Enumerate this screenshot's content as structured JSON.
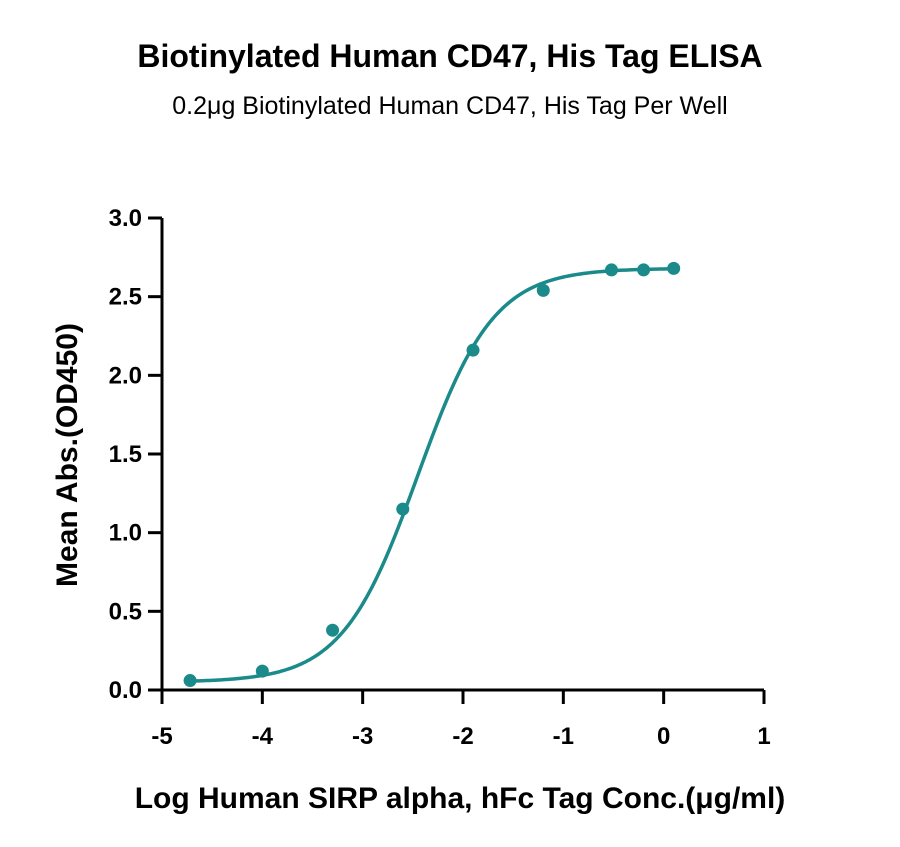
{
  "chart_data": {
    "type": "scatter",
    "title": "Biotinylated Human CD47, His Tag ELISA",
    "subtitle": "0.2μg Biotinylated Human CD47, His Tag Per Well",
    "xlabel": "Log Human SIRP alpha, hFc Tag Conc.(μg/ml)",
    "ylabel": "Mean Abs.(OD450)",
    "xlim": [
      -5,
      1
    ],
    "ylim": [
      0,
      3.0
    ],
    "x_ticks": [
      "-5",
      "-4",
      "-3",
      "-2",
      "-1",
      "0",
      "1"
    ],
    "y_ticks": [
      "0.0",
      "0.5",
      "1.0",
      "1.5",
      "2.0",
      "2.5",
      "3.0"
    ],
    "grid": false,
    "color": "#1a8a8a",
    "series": [
      {
        "points": [
          {
            "x": -4.72,
            "y": 0.06
          },
          {
            "x": -4.0,
            "y": 0.12
          },
          {
            "x": -3.3,
            "y": 0.38
          },
          {
            "x": -2.6,
            "y": 1.15
          },
          {
            "x": -1.9,
            "y": 2.16
          },
          {
            "x": -1.2,
            "y": 2.54
          },
          {
            "x": -0.52,
            "y": 2.67
          },
          {
            "x": -0.2,
            "y": 2.67
          },
          {
            "x": 0.1,
            "y": 2.68
          }
        ],
        "fit": {
          "bottom": 0.05,
          "top": 2.68,
          "log_ec50": -2.45,
          "hill_slope": 1.15
        }
      }
    ]
  }
}
